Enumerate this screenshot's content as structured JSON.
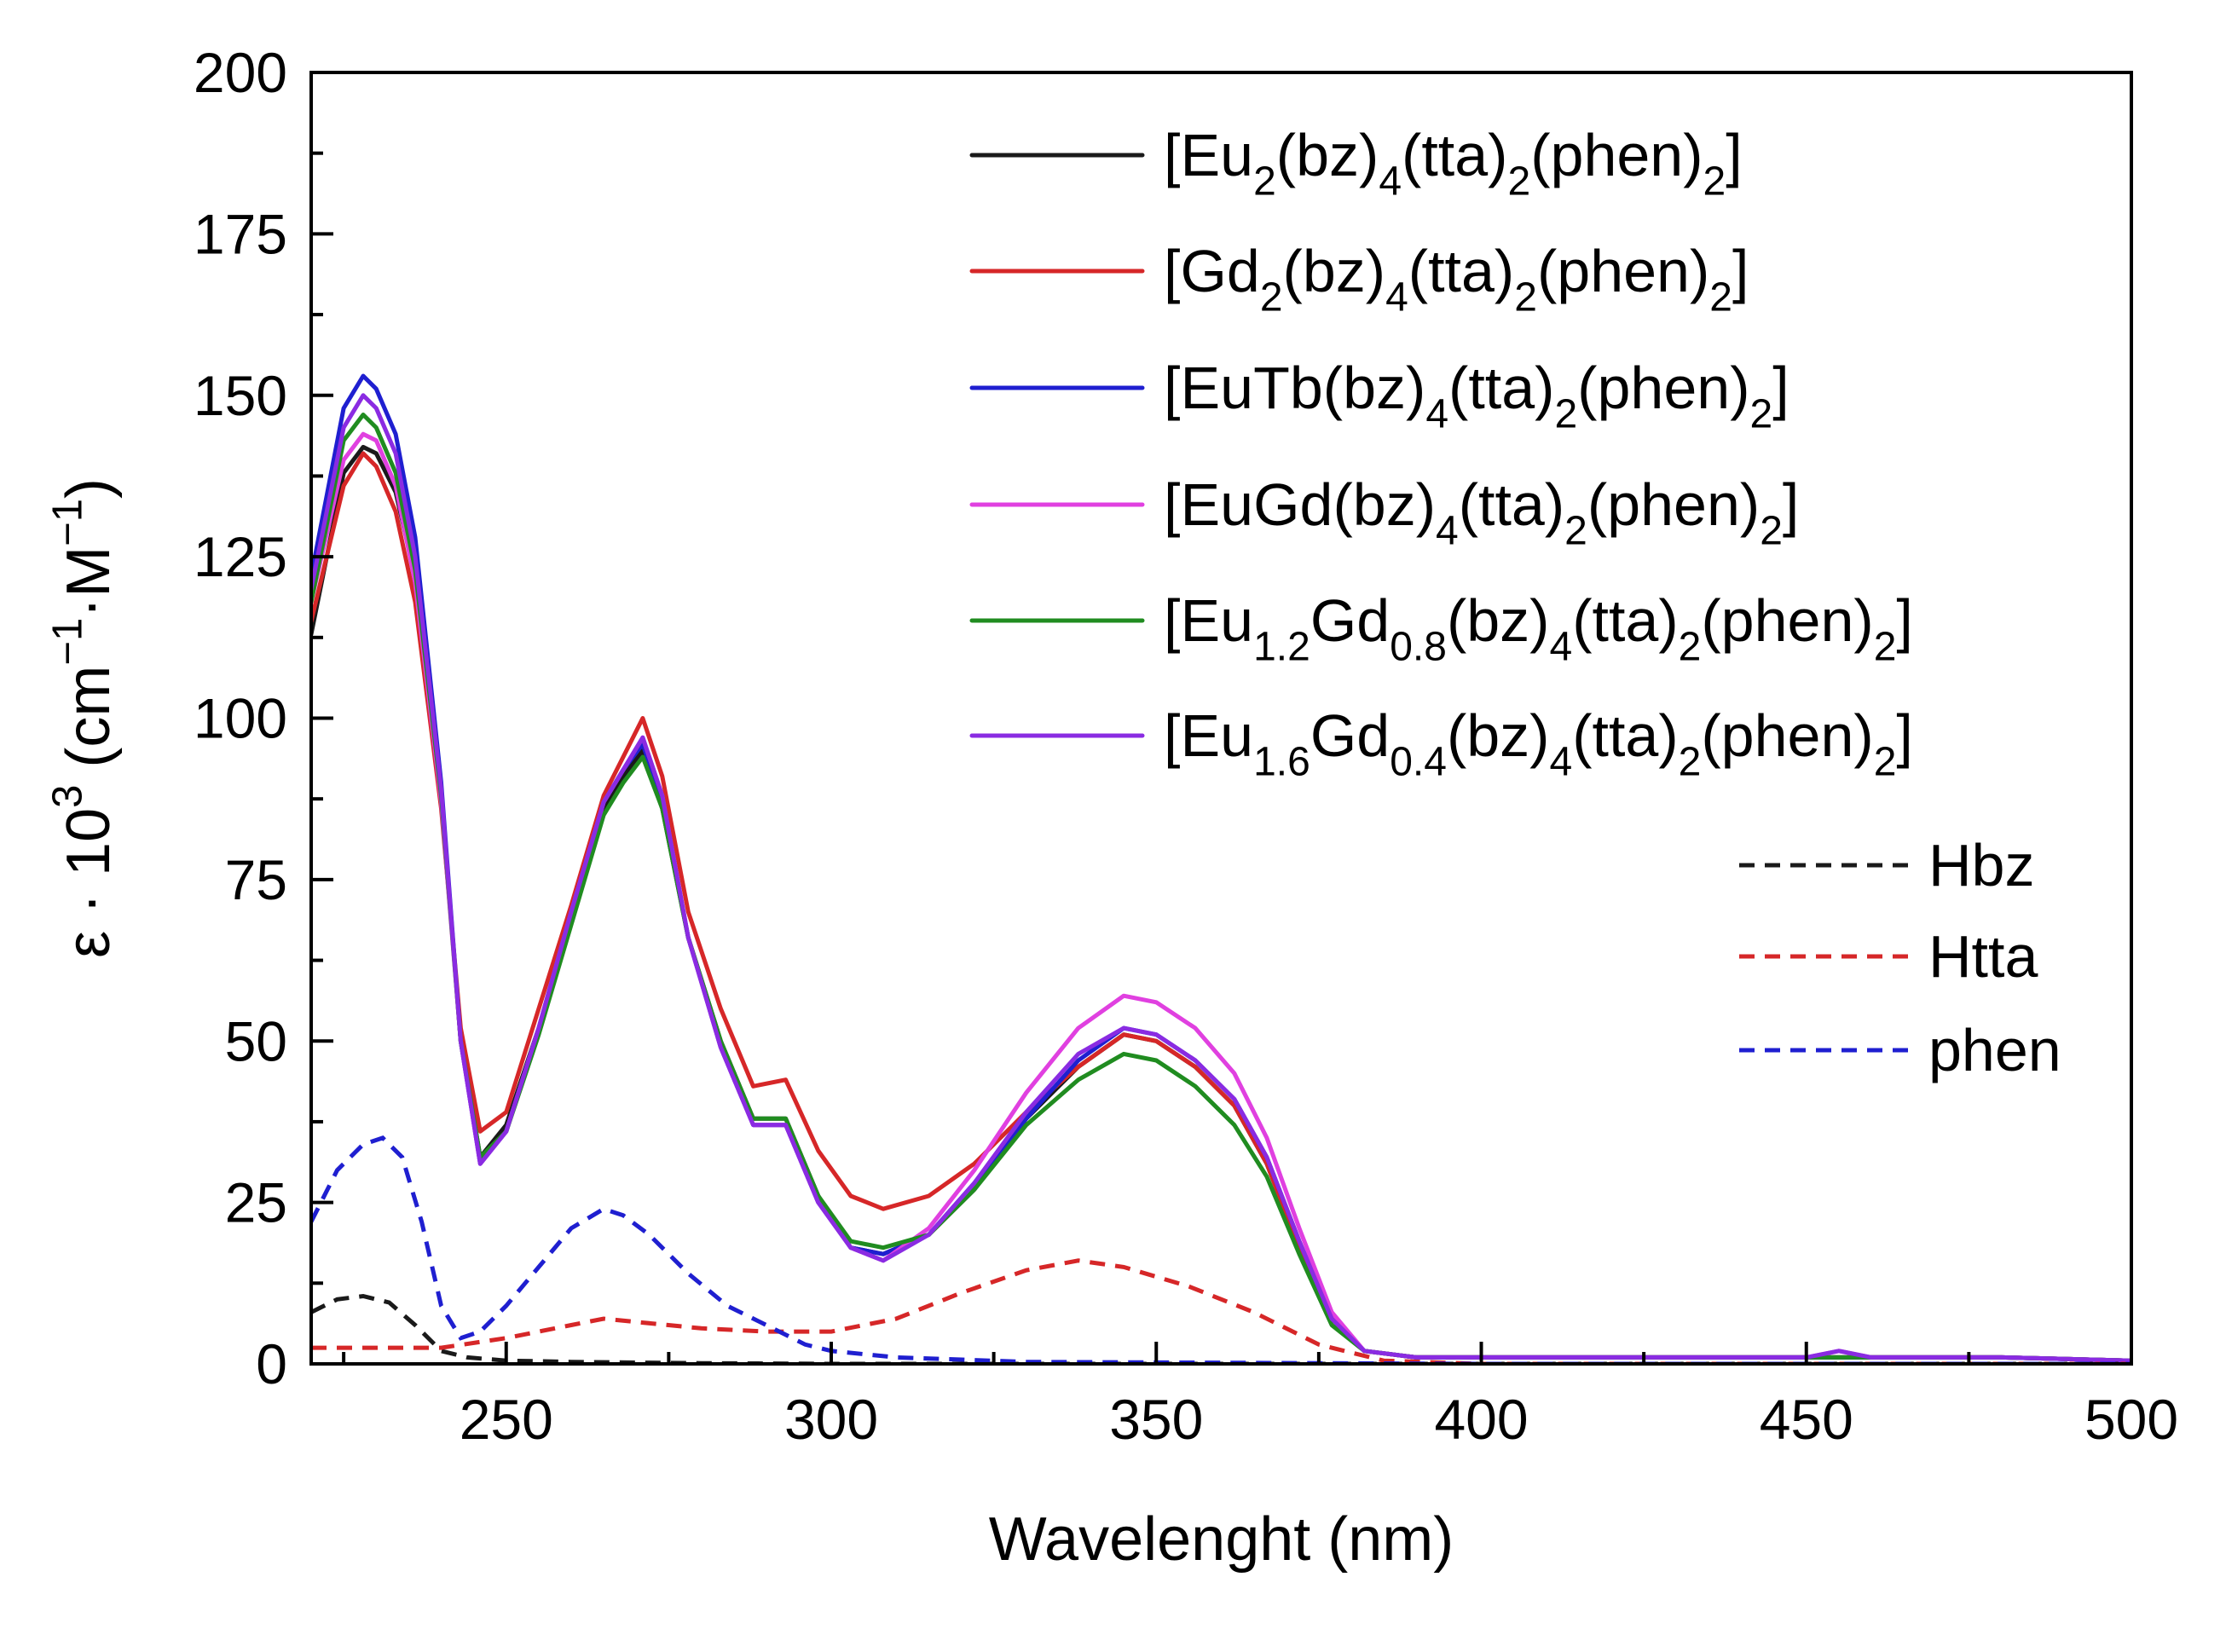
{
  "chart_data": {
    "type": "line",
    "title": "",
    "xlabel": "Wavelenght (nm)",
    "ylabel": {
      "parts": [
        {
          "t": "ε · 10",
          "v": "n"
        },
        {
          "t": "3",
          "v": "sup"
        },
        {
          "t": " (cm",
          "v": "n"
        },
        {
          "t": "−1",
          "v": "sup"
        },
        {
          "t": "·M",
          "v": "n"
        },
        {
          "t": "−1",
          "v": "sup"
        },
        {
          "t": ")",
          "v": "n"
        }
      ]
    },
    "xlim": [
      220,
      500
    ],
    "ylim": [
      0,
      200
    ],
    "xticks": [
      250,
      300,
      350,
      400,
      450,
      500
    ],
    "yticks": [
      0,
      25,
      50,
      75,
      100,
      125,
      150,
      175,
      200
    ],
    "xtick_labels": [
      "250",
      "300",
      "350",
      "400",
      "450",
      "500"
    ],
    "ytick_labels": [
      "0",
      "25",
      "50",
      "75",
      "100",
      "125",
      "150",
      "175",
      "200"
    ],
    "legend_position": "top-right",
    "series": [
      {
        "name": "[Eu2(bz)4(tta)2(phen)2]",
        "label_parts": [
          {
            "t": "[Eu",
            "v": "n"
          },
          {
            "t": "2",
            "v": "sub"
          },
          {
            "t": "(bz)",
            "v": "n"
          },
          {
            "t": "4",
            "v": "sub"
          },
          {
            "t": "(tta)",
            "v": "n"
          },
          {
            "t": "2",
            "v": "sub"
          },
          {
            "t": "(phen)",
            "v": "n"
          },
          {
            "t": "2",
            "v": "sub"
          },
          {
            "t": "]",
            "v": "n"
          }
        ],
        "color": "#1a1a1a",
        "dash": false,
        "x": [
          220,
          225,
          228,
          230,
          233,
          236,
          240,
          243,
          246,
          250,
          255,
          260,
          265,
          268,
          271,
          274,
          278,
          283,
          288,
          293,
          298,
          303,
          308,
          315,
          322,
          330,
          338,
          345,
          350,
          356,
          362,
          367,
          372,
          377,
          382,
          390,
          400,
          420,
          450,
          455,
          460,
          480,
          500
        ],
        "y": [
          113,
          138,
          142,
          141,
          135,
          122,
          88,
          50,
          32,
          37,
          52,
          69,
          86,
          91,
          95,
          86,
          66,
          50,
          38,
          38,
          26,
          18,
          17,
          20,
          27,
          38,
          46,
          51,
          50,
          46,
          40,
          31,
          18,
          7,
          2,
          1,
          1,
          1,
          1,
          1,
          1,
          1,
          0.5
        ]
      },
      {
        "name": "[Gd2(bz)4(tta)2(phen)2]",
        "label_parts": [
          {
            "t": "[Gd",
            "v": "n"
          },
          {
            "t": "2",
            "v": "sub"
          },
          {
            "t": "(bz)",
            "v": "n"
          },
          {
            "t": "4",
            "v": "sub"
          },
          {
            "t": "(tta)",
            "v": "n"
          },
          {
            "t": "2",
            "v": "sub"
          },
          {
            "t": "(phen)",
            "v": "n"
          },
          {
            "t": "2",
            "v": "sub"
          },
          {
            "t": "]",
            "v": "n"
          }
        ],
        "color": "#d62728",
        "dash": false,
        "x": [
          220,
          225,
          228,
          230,
          233,
          236,
          240,
          243,
          246,
          250,
          255,
          260,
          265,
          268,
          271,
          274,
          278,
          283,
          288,
          293,
          298,
          303,
          308,
          315,
          322,
          330,
          338,
          345,
          350,
          356,
          362,
          367,
          372,
          377,
          382,
          390,
          400,
          420,
          450,
          455,
          460,
          480,
          500
        ],
        "y": [
          115,
          136,
          141,
          139,
          132,
          118,
          86,
          52,
          36,
          39,
          55,
          71,
          88,
          94,
          100,
          91,
          70,
          55,
          43,
          44,
          33,
          26,
          24,
          26,
          31,
          39,
          46,
          51,
          50,
          46,
          40,
          31,
          18,
          7,
          2,
          1,
          1,
          1,
          1,
          1,
          1,
          1,
          0.5
        ]
      },
      {
        "name": "[EuTb(bz)4(tta)2(phen)2]",
        "label_parts": [
          {
            "t": "[EuTb(bz)",
            "v": "n"
          },
          {
            "t": "4",
            "v": "sub"
          },
          {
            "t": "(tta)",
            "v": "n"
          },
          {
            "t": "2",
            "v": "sub"
          },
          {
            "t": "(phen)",
            "v": "n"
          },
          {
            "t": "2",
            "v": "sub"
          },
          {
            "t": "]",
            "v": "n"
          }
        ],
        "color": "#1f1fd0",
        "dash": false,
        "x": [
          220,
          225,
          228,
          230,
          233,
          236,
          240,
          243,
          246,
          250,
          255,
          260,
          265,
          268,
          271,
          274,
          278,
          283,
          288,
          293,
          298,
          303,
          308,
          315,
          322,
          330,
          338,
          345,
          350,
          356,
          362,
          367,
          372,
          377,
          382,
          390,
          400,
          420,
          450,
          455,
          460,
          480,
          500
        ],
        "y": [
          122,
          148,
          153,
          151,
          144,
          128,
          90,
          50,
          31,
          36,
          52,
          70,
          87,
          92,
          96,
          87,
          66,
          49,
          37,
          37,
          25,
          18,
          17,
          20,
          28,
          38,
          47,
          52,
          51,
          47,
          41,
          32,
          19,
          7,
          2,
          1,
          1,
          1,
          1,
          1,
          1,
          1,
          0.5
        ]
      },
      {
        "name": "[EuGd(bz)4(tta)2(phen)2]",
        "label_parts": [
          {
            "t": "[EuGd(bz)",
            "v": "n"
          },
          {
            "t": "4",
            "v": "sub"
          },
          {
            "t": "(tta)",
            "v": "n"
          },
          {
            "t": "2",
            "v": "sub"
          },
          {
            "t": "(phen)",
            "v": "n"
          },
          {
            "t": "2",
            "v": "sub"
          },
          {
            "t": "]",
            "v": "n"
          }
        ],
        "color": "#e040e0",
        "dash": false,
        "x": [
          220,
          225,
          228,
          230,
          233,
          236,
          240,
          243,
          246,
          250,
          255,
          260,
          265,
          268,
          271,
          274,
          278,
          283,
          288,
          293,
          298,
          303,
          308,
          315,
          322,
          330,
          338,
          345,
          350,
          356,
          362,
          367,
          372,
          377,
          382,
          390,
          400,
          420,
          450,
          455,
          460,
          480,
          500
        ],
        "y": [
          118,
          140,
          144,
          143,
          136,
          121,
          87,
          50,
          31,
          36,
          52,
          70,
          87,
          92,
          97,
          88,
          66,
          49,
          37,
          37,
          25,
          18,
          16,
          21,
          30,
          42,
          52,
          57,
          56,
          52,
          45,
          35,
          21,
          8,
          2,
          1,
          1,
          1,
          1,
          2,
          1,
          1,
          0.5
        ]
      },
      {
        "name": "[Eu1.2Gd0.8(bz)4(tta)2(phen)2]",
        "label_parts": [
          {
            "t": "[Eu",
            "v": "n"
          },
          {
            "t": "1.2",
            "v": "sub"
          },
          {
            "t": "Gd",
            "v": "n"
          },
          {
            "t": "0.8",
            "v": "sub"
          },
          {
            "t": "(bz)",
            "v": "n"
          },
          {
            "t": "4",
            "v": "sub"
          },
          {
            "t": "(tta)",
            "v": "n"
          },
          {
            "t": "2",
            "v": "sub"
          },
          {
            "t": "(phen)",
            "v": "n"
          },
          {
            "t": "2",
            "v": "sub"
          },
          {
            "t": "]",
            "v": "n"
          }
        ],
        "color": "#208c20",
        "dash": false,
        "x": [
          220,
          225,
          228,
          230,
          233,
          236,
          240,
          243,
          246,
          250,
          255,
          260,
          265,
          268,
          271,
          274,
          278,
          283,
          288,
          293,
          298,
          303,
          308,
          315,
          322,
          330,
          338,
          345,
          350,
          356,
          362,
          367,
          372,
          377,
          382,
          390,
          400,
          420,
          450,
          455,
          460,
          480,
          500
        ],
        "y": [
          118,
          143,
          147,
          145,
          138,
          123,
          88,
          50,
          32,
          36,
          51,
          68,
          85,
          90,
          94,
          86,
          66,
          50,
          38,
          38,
          26,
          19,
          18,
          20,
          27,
          37,
          44,
          48,
          47,
          43,
          37,
          29,
          17,
          6,
          2,
          1,
          1,
          1,
          1,
          1,
          1,
          1,
          0.5
        ]
      },
      {
        "name": "[Eu1.6Gd0.4(bz)4(tta)2(phen)2]",
        "label_parts": [
          {
            "t": "[Eu",
            "v": "n"
          },
          {
            "t": "1.6",
            "v": "sub"
          },
          {
            "t": "Gd",
            "v": "n"
          },
          {
            "t": "0.4",
            "v": "sub"
          },
          {
            "t": "(bz)",
            "v": "n"
          },
          {
            "t": "4",
            "v": "sub"
          },
          {
            "t": "(tta)",
            "v": "n"
          },
          {
            "t": "2",
            "v": "sub"
          },
          {
            "t": "(phen)",
            "v": "n"
          },
          {
            "t": "2",
            "v": "sub"
          },
          {
            "t": "]",
            "v": "n"
          }
        ],
        "color": "#8a2be2",
        "dash": false,
        "x": [
          220,
          225,
          228,
          230,
          233,
          236,
          240,
          243,
          246,
          250,
          255,
          260,
          265,
          268,
          271,
          274,
          278,
          283,
          288,
          293,
          298,
          303,
          308,
          315,
          322,
          330,
          338,
          345,
          350,
          356,
          362,
          367,
          372,
          377,
          382,
          390,
          400,
          420,
          450,
          455,
          460,
          480,
          500
        ],
        "y": [
          120,
          145,
          150,
          148,
          141,
          125,
          89,
          50,
          31,
          36,
          52,
          70,
          87,
          92,
          97,
          88,
          66,
          49,
          37,
          37,
          25,
          18,
          16,
          20,
          28,
          39,
          48,
          52,
          51,
          47,
          41,
          32,
          19,
          7,
          2,
          1,
          1,
          1,
          1,
          2,
          1,
          1,
          0.5
        ]
      },
      {
        "name": "Hbz",
        "label_parts": [
          {
            "t": "Hbz",
            "v": "n"
          }
        ],
        "color": "#1a1a1a",
        "dash": true,
        "x": [
          220,
          224,
          228,
          232,
          236,
          240,
          244,
          250,
          260,
          270,
          280,
          300,
          350,
          500
        ],
        "y": [
          8,
          10,
          10.5,
          9.5,
          6,
          2,
          1,
          0.5,
          0.3,
          0.2,
          0.1,
          0,
          0,
          0
        ]
      },
      {
        "name": "Htta",
        "label_parts": [
          {
            "t": "Htta",
            "v": "n"
          }
        ],
        "color": "#d62728",
        "dash": true,
        "x": [
          220,
          230,
          240,
          250,
          260,
          265,
          270,
          280,
          290,
          300,
          310,
          320,
          330,
          338,
          345,
          355,
          365,
          375,
          385,
          400,
          450,
          500
        ],
        "y": [
          2.5,
          2.5,
          2.5,
          4,
          6,
          7,
          6.5,
          5.5,
          5,
          5,
          7,
          11,
          14.5,
          16,
          15,
          12,
          8,
          3,
          0.5,
          0,
          0,
          0
        ]
      },
      {
        "name": "phen",
        "label_parts": [
          {
            "t": "phen",
            "v": "n"
          }
        ],
        "color": "#1f1fd0",
        "dash": true,
        "x": [
          220,
          224,
          228,
          231,
          234,
          237,
          240,
          243,
          246,
          250,
          255,
          260,
          265,
          268,
          272,
          278,
          284,
          290,
          296,
          300,
          310,
          330,
          400,
          500
        ],
        "y": [
          22,
          30,
          34,
          35,
          32,
          22,
          9,
          4,
          5,
          9,
          15,
          21,
          24,
          23,
          20,
          14,
          9,
          6,
          3,
          2,
          1,
          0.3,
          0,
          0
        ]
      }
    ]
  }
}
